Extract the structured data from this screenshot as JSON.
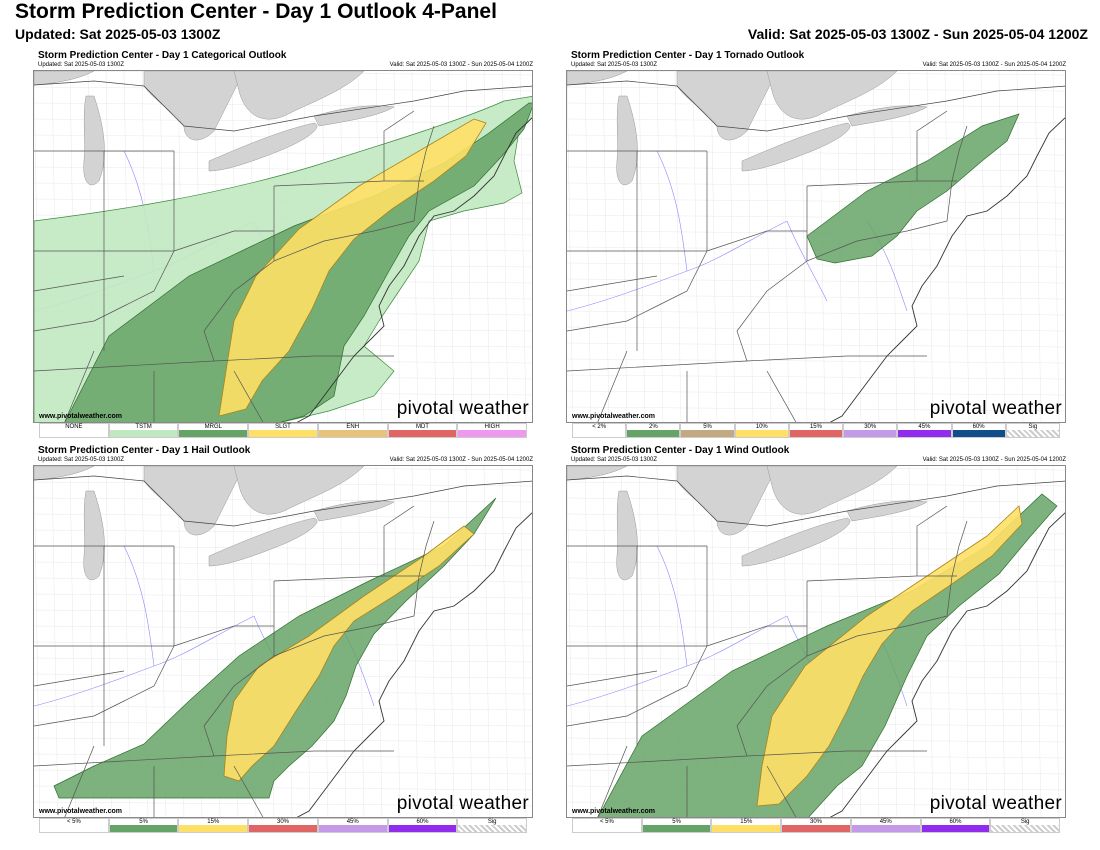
{
  "header": {
    "title": "Storm Prediction Center - Day 1 Outlook 4-Panel",
    "updated": "Updated: Sat 2025-05-03 1300Z",
    "valid": "Valid: Sat 2025-05-03 1300Z - Sun 2025-05-04 1200Z"
  },
  "panels": {
    "categorical": {
      "title": "Storm Prediction Center - Day 1 Categorical Outlook",
      "updated": "Updated: Sat 2025-05-03 1300Z",
      "valid": "Valid: Sat 2025-05-03 1300Z - Sun 2025-05-04 1200Z",
      "site": "www.pivotalweather.com",
      "brand": "pivotal weather",
      "legend": [
        {
          "label": "NONE",
          "color": "#ffffff"
        },
        {
          "label": "TSTM",
          "color": "#c1e9c1"
        },
        {
          "label": "MRGL",
          "color": "#66a366"
        },
        {
          "label": "SLGT",
          "color": "#ffe066"
        },
        {
          "label": "ENH",
          "color": "#e6c27a"
        },
        {
          "label": "MDT",
          "color": "#e06666"
        },
        {
          "label": "HIGH",
          "color": "#ee99ee"
        }
      ]
    },
    "tornado": {
      "title": "Storm Prediction Center - Day 1 Tornado Outlook",
      "updated": "Updated: Sat 2025-05-03 1300Z",
      "valid": "Valid: Sat 2025-05-03 1300Z - Sun 2025-05-04 1200Z",
      "site": "www.pivotalweather.com",
      "brand": "pivotal weather",
      "legend": [
        {
          "label": "< 2%",
          "color": "#ffffff"
        },
        {
          "label": "2%",
          "color": "#66a366"
        },
        {
          "label": "5%",
          "color": "#c4a882"
        },
        {
          "label": "10%",
          "color": "#ffe066"
        },
        {
          "label": "15%",
          "color": "#e06666"
        },
        {
          "label": "30%",
          "color": "#c49ae8"
        },
        {
          "label": "45%",
          "color": "#912cee"
        },
        {
          "label": "60%",
          "color": "#104e8b"
        },
        {
          "label": "Sig",
          "color": "pattern"
        }
      ]
    },
    "hail": {
      "title": "Storm Prediction Center - Day 1 Hail Outlook",
      "updated": "Updated: Sat 2025-05-03 1300Z",
      "valid": "Valid: Sat 2025-05-03 1300Z - Sun 2025-05-04 1200Z",
      "site": "www.pivotalweather.com",
      "brand": "pivotal weather",
      "legend": [
        {
          "label": "< 5%",
          "color": "#ffffff"
        },
        {
          "label": "5%",
          "color": "#66a366"
        },
        {
          "label": "15%",
          "color": "#ffe066"
        },
        {
          "label": "30%",
          "color": "#e06666"
        },
        {
          "label": "45%",
          "color": "#c49ae8"
        },
        {
          "label": "60%",
          "color": "#912cee"
        },
        {
          "label": "Sig",
          "color": "pattern"
        }
      ]
    },
    "wind": {
      "title": "Storm Prediction Center - Day 1 Wind Outlook",
      "updated": "Updated: Sat 2025-05-03 1300Z",
      "valid": "Valid: Sat 2025-05-03 1300Z - Sun 2025-05-04 1200Z",
      "site": "www.pivotalweather.com",
      "brand": "pivotal weather",
      "legend": [
        {
          "label": "< 5%",
          "color": "#ffffff"
        },
        {
          "label": "5%",
          "color": "#66a366"
        },
        {
          "label": "15%",
          "color": "#ffe066"
        },
        {
          "label": "30%",
          "color": "#e06666"
        },
        {
          "label": "45%",
          "color": "#c49ae8"
        },
        {
          "label": "60%",
          "color": "#912cee"
        },
        {
          "label": "Sig",
          "color": "pattern"
        }
      ]
    }
  },
  "colors": {
    "tstm": "#c1e9c1",
    "mrgl": "#66a366",
    "slgt": "#ffe066",
    "lake": "#d3d3d3",
    "river": "#8a8aff",
    "border": "#555555"
  }
}
